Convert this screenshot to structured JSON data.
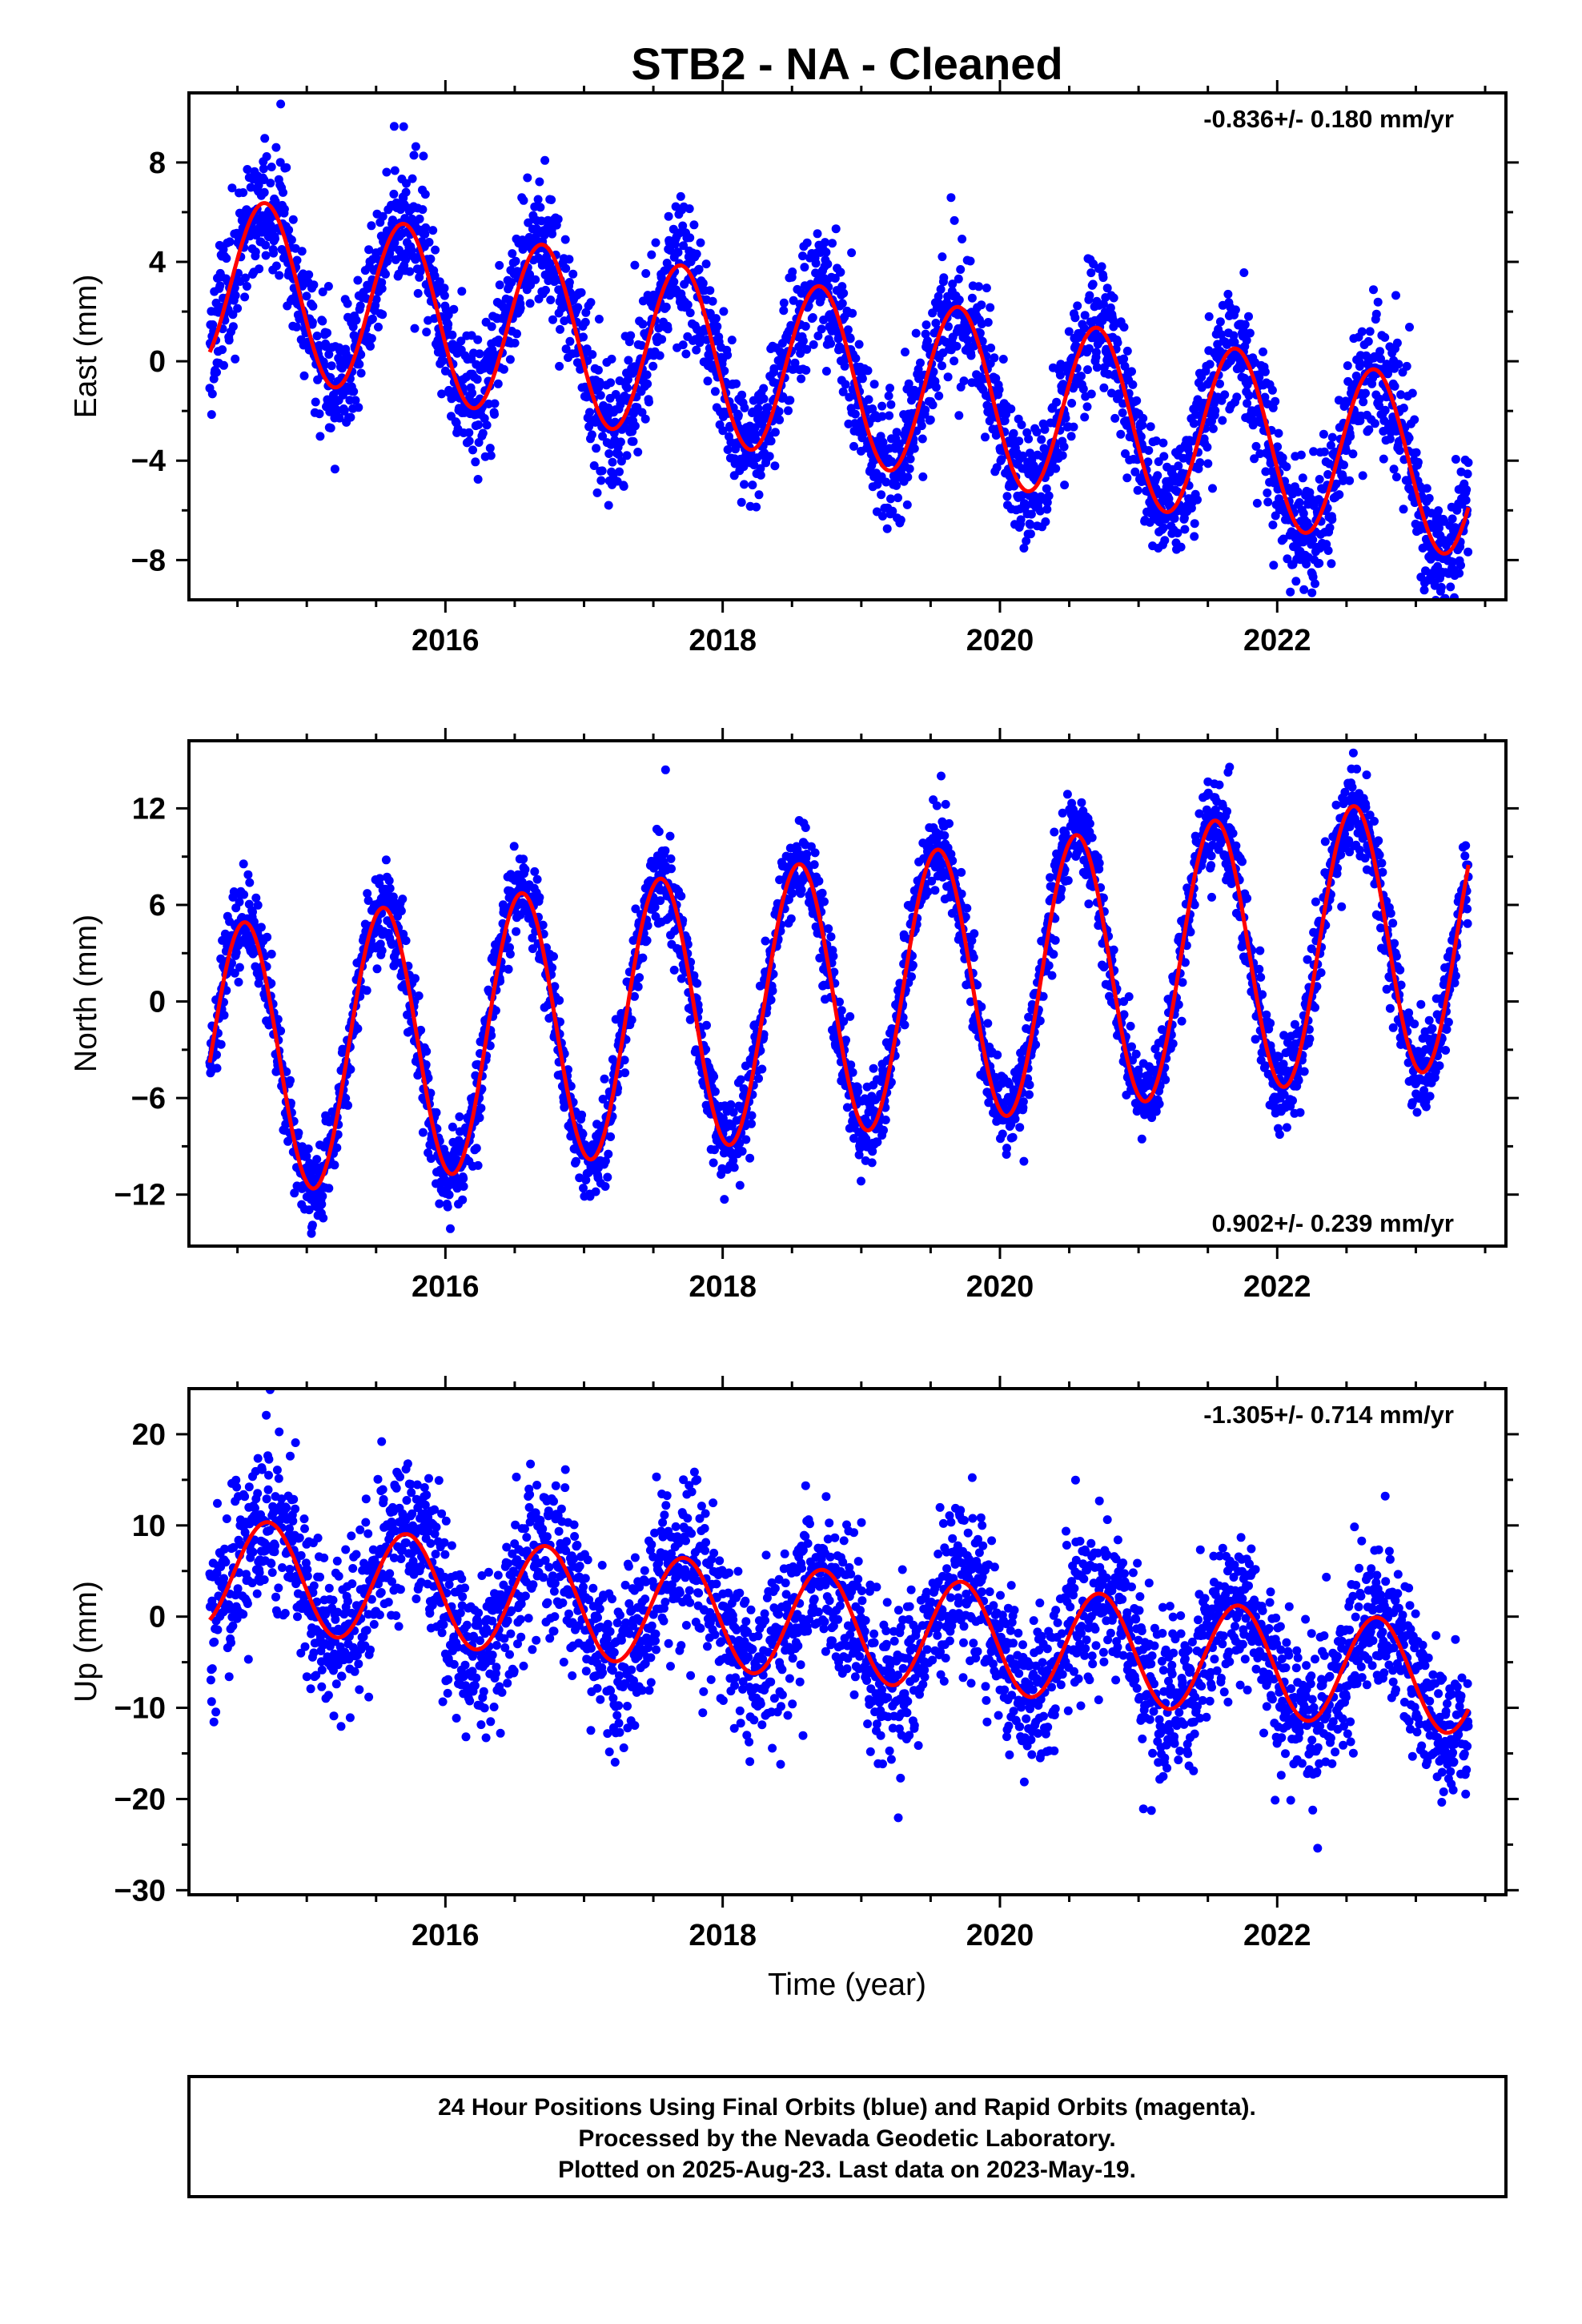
{
  "title": "STB2  - NA - Cleaned",
  "chart_data": [
    {
      "type": "scatter",
      "name": "east",
      "ylabel": "East (mm)",
      "xlabel": "",
      "rate_text": "-0.836+/- 0.180 mm/yr",
      "rate_position": "top-right",
      "xlim": [
        2014.15,
        2023.65
      ],
      "ylim": [
        -9.6,
        10.8
      ],
      "x_ticks": [
        2016,
        2018,
        2020,
        2022
      ],
      "x_tick_labels": [
        "2016",
        "2018",
        "2020",
        "2022"
      ],
      "y_ticks": [
        -8,
        -4,
        0,
        4,
        8
      ],
      "y_tick_labels": [
        "−8",
        "−4",
        "0",
        "4",
        "8"
      ],
      "start_year": 2014.3,
      "end_year": 2023.38,
      "series": [
        {
          "name": "",
          "color": "#0000ff",
          "kind": "points",
          "x_range": [
            2014.3,
            2023.38
          ],
          "model_intercept": 3.2,
          "model_slope": -0.836,
          "annual_amplitude": 3.5,
          "peak_phase": 0.7,
          "noise_sd": 1.3
        },
        {
          "name": "",
          "color": "#ff0000",
          "kind": "fit-line",
          "x_range": [
            2014.3,
            2023.38
          ],
          "intercept": 3.2,
          "slope": -0.836,
          "annual_amplitude": 3.5,
          "peak_phase": 0.7
        }
      ]
    },
    {
      "type": "scatter",
      "name": "north",
      "ylabel": "North (mm)",
      "xlabel": "",
      "rate_text": "0.902+/- 0.239 mm/yr",
      "rate_position": "bottom-right",
      "xlim": [
        2014.15,
        2023.65
      ],
      "ylim": [
        -15.2,
        16.2
      ],
      "x_ticks": [
        2016,
        2018,
        2020,
        2022
      ],
      "x_tick_labels": [
        "2016",
        "2018",
        "2020",
        "2022"
      ],
      "y_ticks": [
        -12,
        -6,
        0,
        6,
        12
      ],
      "y_tick_labels": [
        "−12",
        "−6",
        "0",
        "6",
        "12"
      ],
      "start_year": 2014.3,
      "end_year": 2023.38,
      "series": [
        {
          "name": "",
          "color": "#0000ff",
          "kind": "points",
          "x_range": [
            2014.3,
            2023.38
          ],
          "model_intercept": -3.8,
          "model_slope": 0.902,
          "annual_amplitude": 8.5,
          "peak_phase": 0.55,
          "noise_sd": 1.3
        },
        {
          "name": "",
          "color": "#ff0000",
          "kind": "fit-line",
          "x_range": [
            2014.3,
            2023.38
          ],
          "intercept": -3.8,
          "slope": 0.902,
          "annual_amplitude": 8.5,
          "peak_phase": 0.55
        }
      ]
    },
    {
      "type": "scatter",
      "name": "up",
      "ylabel": "Up (mm)",
      "xlabel": "Time (year)",
      "rate_text": "-1.305+/- 0.714 mm/yr",
      "rate_position": "top-right",
      "xlim": [
        2014.15,
        2023.65
      ],
      "ylim": [
        -30.5,
        25
      ],
      "x_ticks": [
        2016,
        2018,
        2020,
        2022
      ],
      "x_tick_labels": [
        "2016",
        "2018",
        "2020",
        "2022"
      ],
      "y_ticks": [
        -30,
        -20,
        -10,
        0,
        10,
        20
      ],
      "y_tick_labels": [
        "−30",
        "−20",
        "−10",
        "0",
        "10",
        "20"
      ],
      "start_year": 2014.3,
      "end_year": 2023.38,
      "series": [
        {
          "name": "",
          "color": "#0000ff",
          "kind": "points",
          "x_range": [
            2014.3,
            2023.38
          ],
          "model_intercept": 4.9,
          "model_slope": -1.305,
          "annual_amplitude": 6.0,
          "peak_phase": 0.72,
          "noise_sd": 4.4
        },
        {
          "name": "",
          "color": "#ff0000",
          "kind": "fit-line",
          "x_range": [
            2014.3,
            2023.38
          ],
          "intercept": 4.9,
          "slope": -1.305,
          "annual_amplitude": 6.0,
          "peak_phase": 0.72
        }
      ]
    }
  ],
  "footer": {
    "line1": "24 Hour Positions Using Final Orbits (blue) and Rapid Orbits (magenta).",
    "line2": "Processed by the Nevada Geodetic Laboratory.",
    "line3": "Plotted on 2025-Aug-23. Last data on 2023-May-19."
  }
}
